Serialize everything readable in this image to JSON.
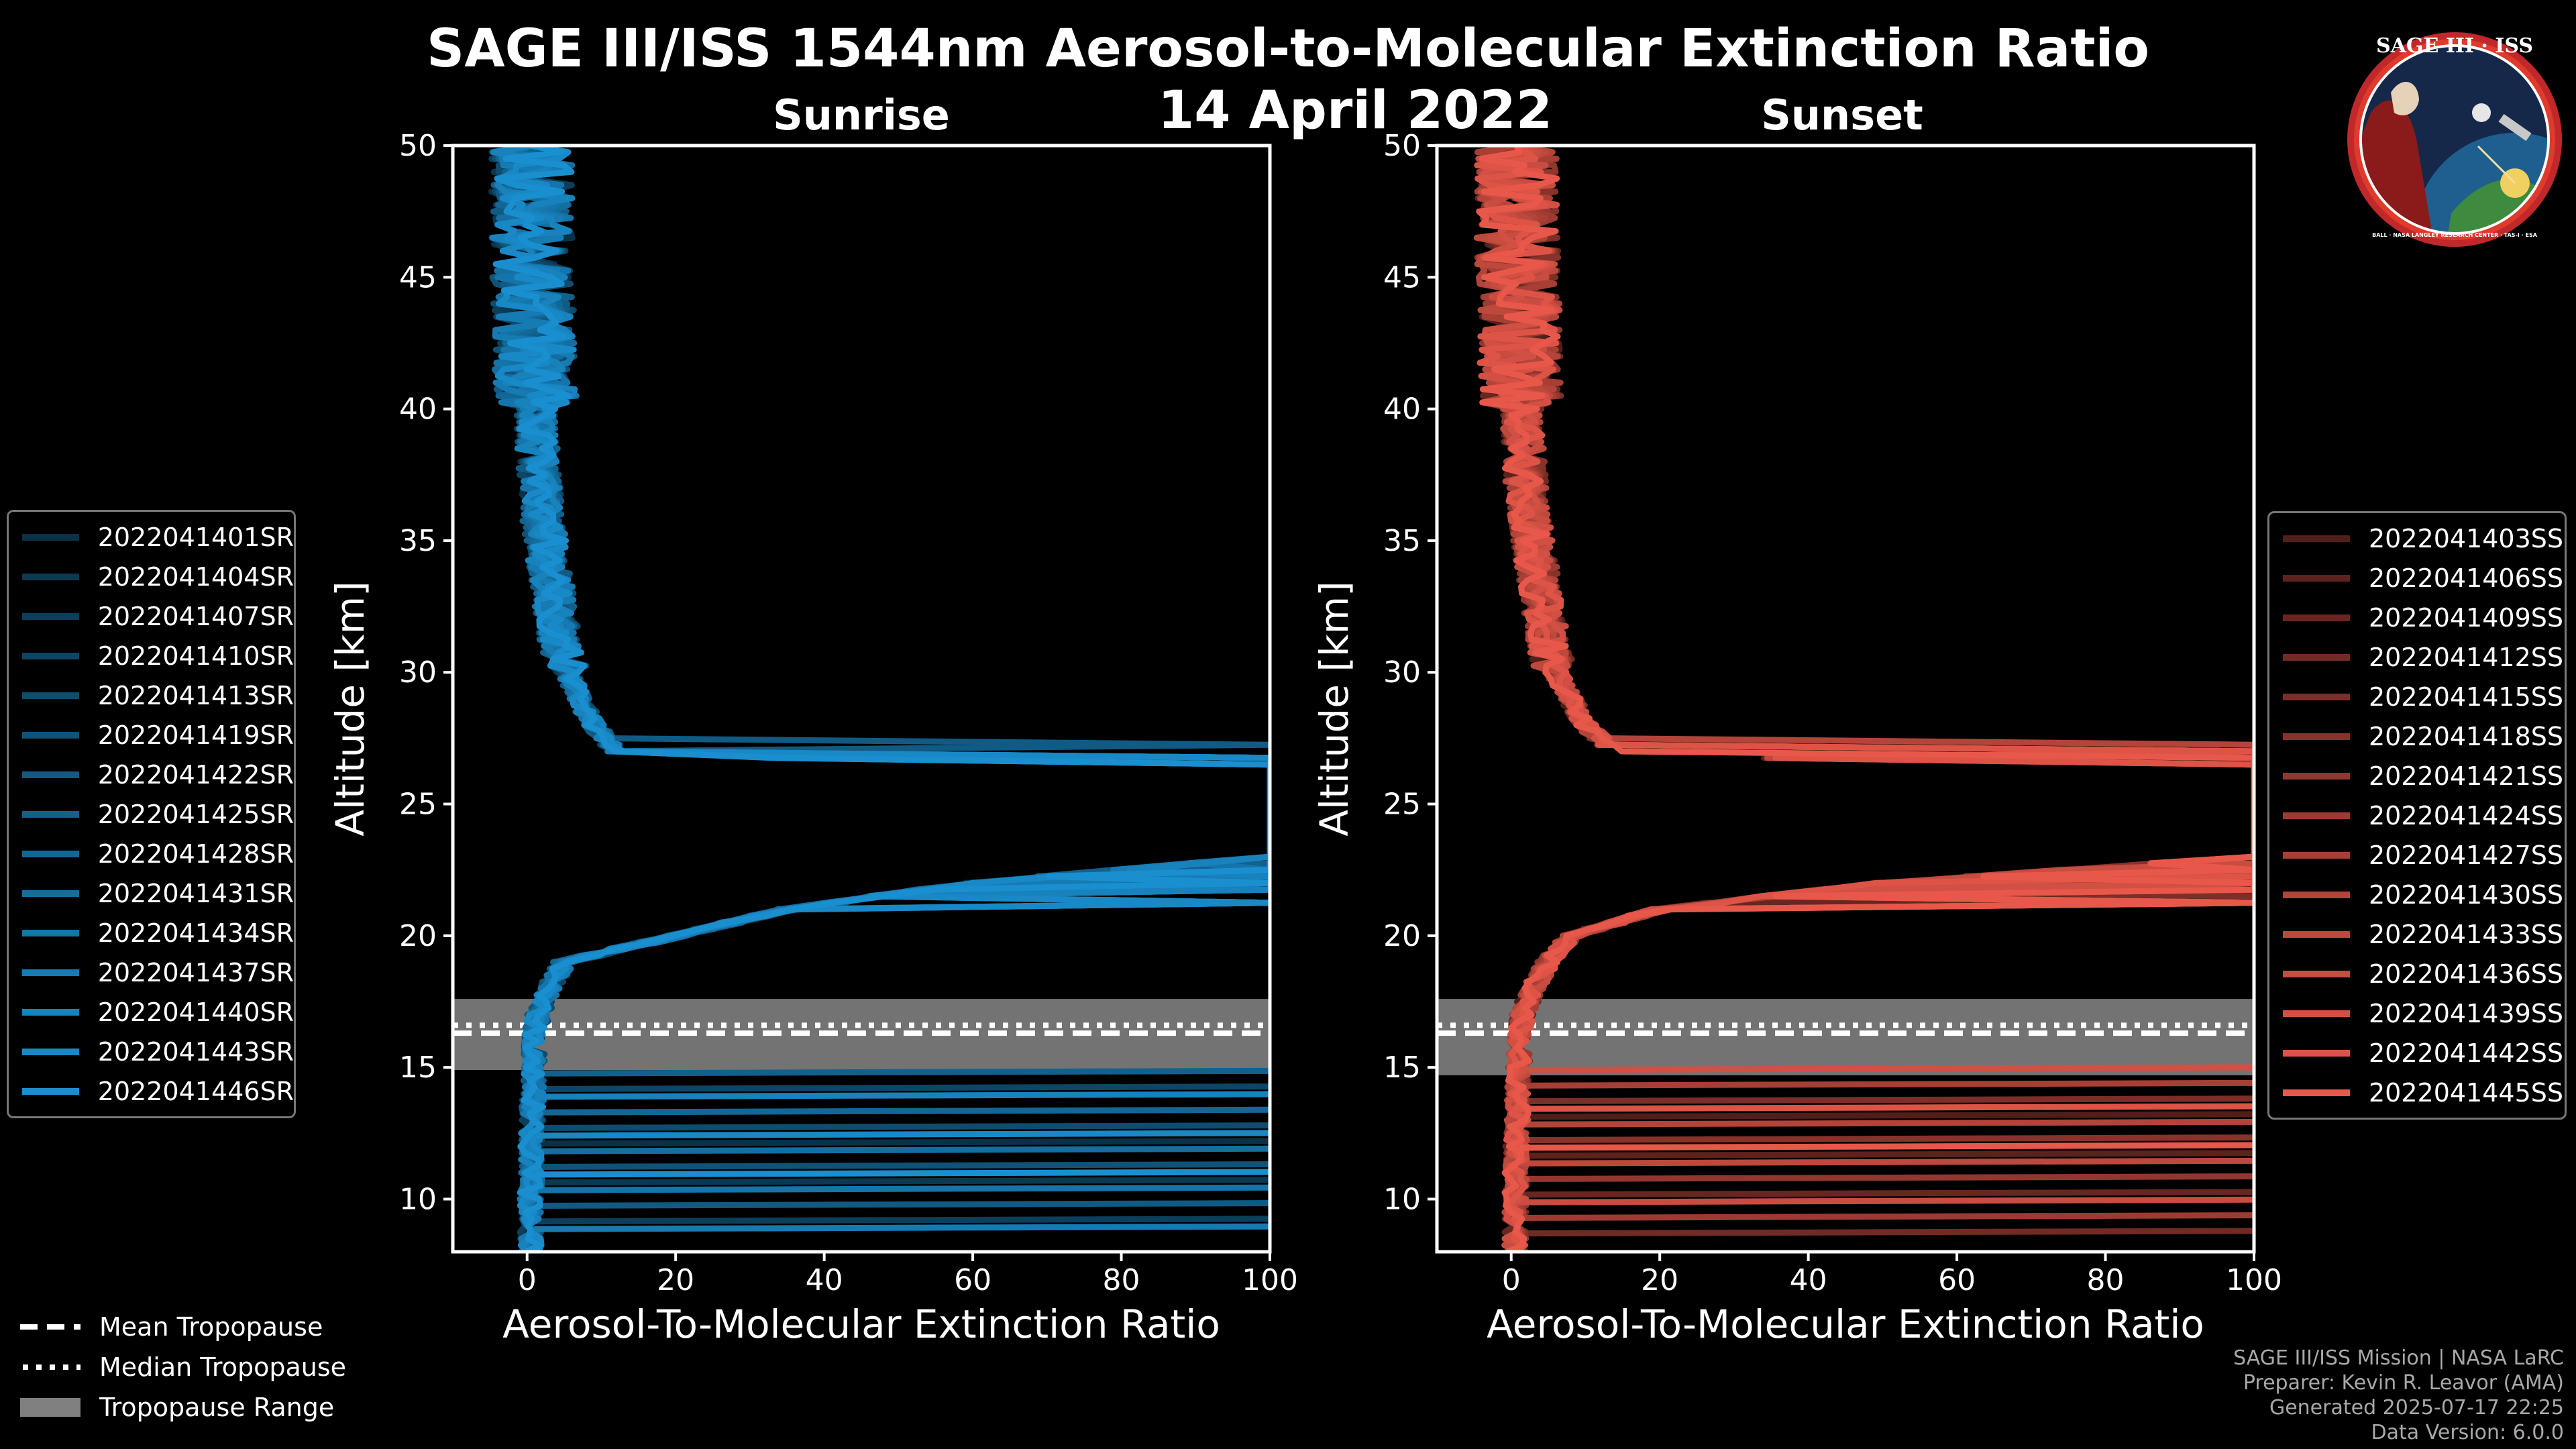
{
  "figure": {
    "title": "SAGE III/ISS 1544nm Aerosol-to-Molecular Extinction Ratio",
    "date": "14 April 2022",
    "footer": [
      "SAGE III/ISS Mission | NASA LaRC",
      "Preparer: Kevin R. Leavor (AMA)",
      "Generated 2025-07-17 22:25",
      "Data Version: 6.0.0"
    ],
    "logo": {
      "name": "SAGE III · ISS",
      "ring_text": "BALL · NASA LANGLEY RESEARCH CENTER · TAS-I · ESA"
    }
  },
  "colors": {
    "sunrise": "#1a8fd0",
    "sunset": "#e8584a",
    "tropopause_range": "#808080",
    "background": "#000000"
  },
  "tropopause_legend": [
    {
      "label": "Mean Tropopause",
      "style": "dashed"
    },
    {
      "label": "Median Tropopause",
      "style": "dotted"
    },
    {
      "label": "Tropopause Range",
      "style": "patch"
    }
  ],
  "chart_data": [
    {
      "type": "line",
      "panel_title": "Sunrise",
      "xlabel": "Aerosol-To-Molecular Extinction Ratio",
      "ylabel": "Altitude [km]",
      "xlim": [
        -10,
        100
      ],
      "ylim": [
        8,
        50
      ],
      "xticks": [
        0,
        20,
        40,
        60,
        80,
        100
      ],
      "yticks": [
        10,
        15,
        20,
        25,
        30,
        35,
        40,
        45,
        50
      ],
      "tropopause": {
        "mean": 16.3,
        "median": 16.6,
        "range": [
          14.9,
          17.6
        ]
      },
      "profile": {
        "altitude": [
          8,
          9,
          10,
          11,
          12,
          13,
          14,
          15,
          16,
          17,
          18,
          19,
          20,
          21,
          22,
          23,
          24,
          25,
          26,
          27,
          28,
          29,
          30,
          31,
          32,
          33,
          34,
          35,
          36,
          37,
          38,
          39,
          40,
          41,
          42,
          43,
          44,
          45,
          46,
          47,
          48,
          49,
          50
        ],
        "ratio": [
          0.5,
          0.5,
          0.5,
          0.6,
          0.6,
          0.7,
          0.8,
          0.9,
          1.0,
          1.5,
          3,
          5,
          20,
          35,
          60,
          100,
          100,
          100,
          100,
          12,
          9,
          7,
          5.5,
          4.5,
          4,
          3.5,
          3,
          2.5,
          2,
          1.8,
          1.5,
          1.3,
          1.2,
          1.1,
          1,
          1,
          0.8,
          0.8,
          0.7,
          0.7,
          0.6,
          0.6,
          0.5
        ]
      },
      "series": [
        {
          "name": "2022041401SR"
        },
        {
          "name": "2022041404SR"
        },
        {
          "name": "2022041407SR"
        },
        {
          "name": "2022041410SR"
        },
        {
          "name": "2022041413SR"
        },
        {
          "name": "2022041419SR"
        },
        {
          "name": "2022041422SR"
        },
        {
          "name": "2022041425SR"
        },
        {
          "name": "2022041428SR"
        },
        {
          "name": "2022041431SR"
        },
        {
          "name": "2022041434SR"
        },
        {
          "name": "2022041437SR"
        },
        {
          "name": "2022041440SR"
        },
        {
          "name": "2022041443SR"
        },
        {
          "name": "2022041446SR"
        }
      ]
    },
    {
      "type": "line",
      "panel_title": "Sunset",
      "xlabel": "Aerosol-To-Molecular Extinction Ratio",
      "ylabel": "Altitude [km]",
      "xlim": [
        -10,
        100
      ],
      "ylim": [
        8,
        50
      ],
      "xticks": [
        0,
        20,
        40,
        60,
        80,
        100
      ],
      "yticks": [
        10,
        15,
        20,
        25,
        30,
        35,
        40,
        45,
        50
      ],
      "tropopause": {
        "mean": 16.3,
        "median": 16.6,
        "range": [
          14.7,
          17.6
        ]
      },
      "profile": {
        "altitude": [
          8,
          9,
          10,
          11,
          12,
          13,
          14,
          15,
          16,
          17,
          18,
          19,
          20,
          21,
          22,
          23,
          24,
          25,
          26,
          27,
          28,
          29,
          30,
          31,
          32,
          33,
          34,
          35,
          36,
          37,
          38,
          39,
          40,
          41,
          42,
          43,
          44,
          45,
          46,
          47,
          48,
          49,
          50
        ],
        "ratio": [
          0.5,
          0.5,
          0.6,
          0.6,
          0.7,
          0.8,
          0.9,
          1.0,
          1.1,
          1.5,
          3,
          5,
          8,
          20,
          50,
          100,
          100,
          100,
          100,
          14,
          10,
          8,
          6,
          5,
          4.5,
          4,
          3.5,
          3,
          2.5,
          2,
          1.8,
          1.6,
          1.4,
          1.3,
          1.2,
          1.1,
          1,
          0.9,
          0.9,
          0.8,
          0.8,
          0.7,
          0.7
        ]
      },
      "series": [
        {
          "name": "2022041403SS"
        },
        {
          "name": "2022041406SS"
        },
        {
          "name": "2022041409SS"
        },
        {
          "name": "2022041412SS"
        },
        {
          "name": "2022041415SS"
        },
        {
          "name": "2022041418SS"
        },
        {
          "name": "2022041421SS"
        },
        {
          "name": "2022041424SS"
        },
        {
          "name": "2022041427SS"
        },
        {
          "name": "2022041430SS"
        },
        {
          "name": "2022041433SS"
        },
        {
          "name": "2022041436SS"
        },
        {
          "name": "2022041439SS"
        },
        {
          "name": "2022041442SS"
        },
        {
          "name": "2022041445SS"
        }
      ]
    }
  ]
}
